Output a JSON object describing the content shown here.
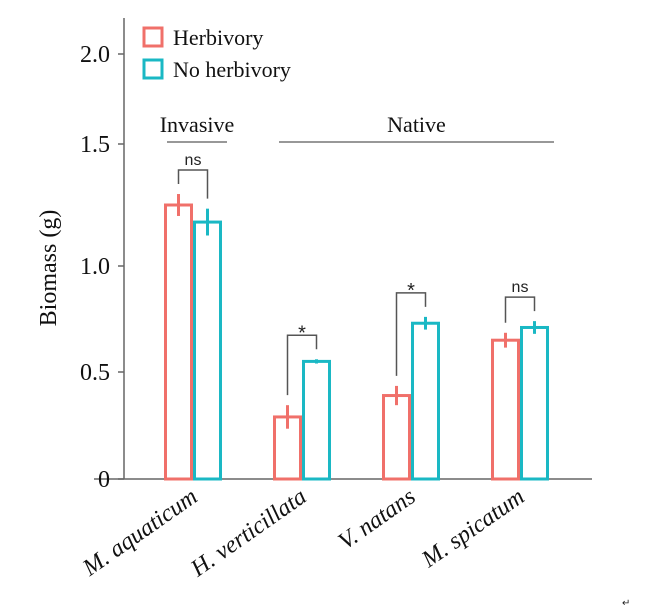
{
  "chart_data": {
    "type": "bar",
    "title": "",
    "xlabel": "",
    "ylabel": "Biomass (g)",
    "ylim": [
      0,
      2.1
    ],
    "yticks": [
      0,
      0.5,
      1.0,
      1.5,
      2.0
    ],
    "ytick_labels": [
      "0",
      "0.5",
      "1.0",
      "1.5",
      "2.0"
    ],
    "grid": false,
    "legend_placement": "top-left",
    "categories": [
      "M. aquaticum",
      "H. verticillata",
      "V. natans",
      "M. spicatum"
    ],
    "series": [
      {
        "name": "Herbivory",
        "color": "#f0706a",
        "values": [
          1.25,
          0.29,
          0.39,
          0.65
        ],
        "errors": [
          0.045,
          0.055,
          0.045,
          0.035
        ]
      },
      {
        "name": "No herbivory",
        "color": "#1ab8c4",
        "values": [
          1.18,
          0.55,
          0.73,
          0.71
        ],
        "errors": [
          0.055,
          0.01,
          0.03,
          0.03
        ]
      }
    ],
    "significance": [
      "ns",
      "*",
      "*",
      "ns"
    ],
    "groups": [
      {
        "label": "Invasive",
        "categories": [
          "M. aquaticum"
        ]
      },
      {
        "label": "Native",
        "categories": [
          "H. verticillata",
          "V. natans",
          "M. spicatum"
        ]
      }
    ]
  },
  "footer_mark": "↵"
}
